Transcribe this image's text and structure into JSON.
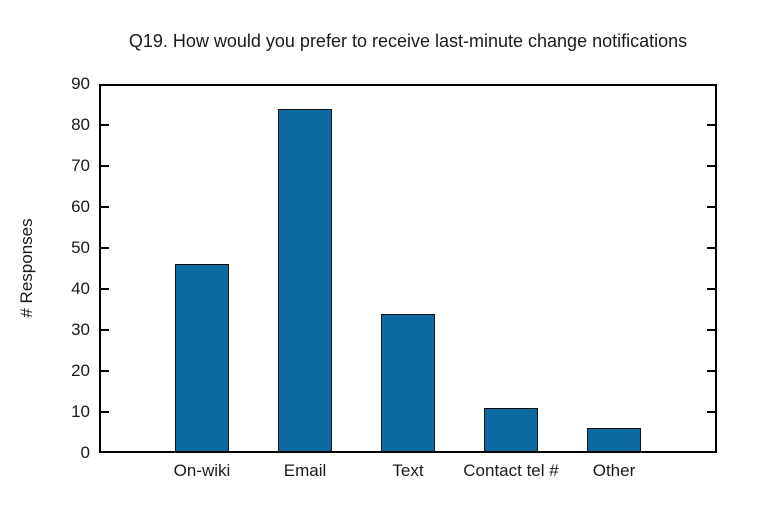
{
  "figure": {
    "background": "#ffffff"
  },
  "chart_data": {
    "type": "bar",
    "title": "Q19. How would you prefer to receive last-minute change notifications",
    "categories": [
      "On-wiki",
      "Email",
      "Text",
      "Contact tel #",
      "Other"
    ],
    "values": [
      46,
      84,
      34,
      11,
      6
    ],
    "xlabel": "",
    "ylabel": "# Responses",
    "ylim": [
      0,
      90
    ],
    "yticks": [
      0,
      10,
      20,
      30,
      40,
      50,
      60,
      70,
      80,
      90
    ],
    "bar_color": "#0c6aa0",
    "bar_edge_color": "#111111",
    "axis_color": "#000000",
    "grid": false,
    "legend_position": "none",
    "tick_style": "inward-left-and-right"
  }
}
